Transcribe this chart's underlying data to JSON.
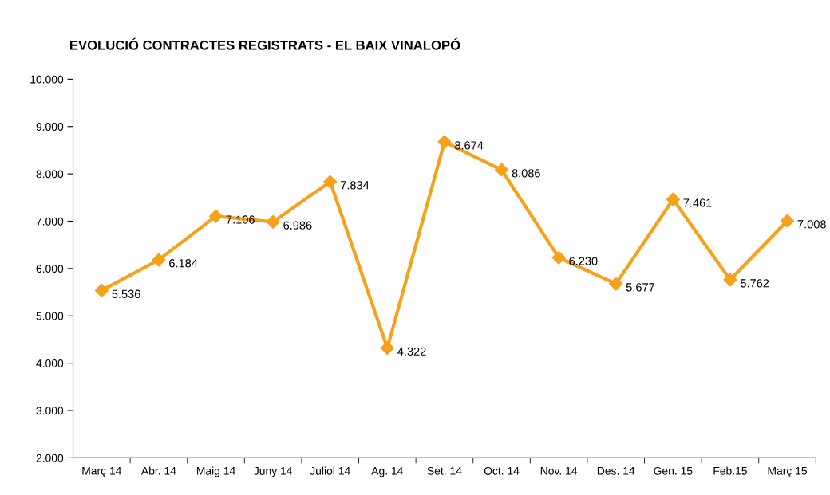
{
  "chart_data": {
    "type": "line",
    "title": "EVOLUCIÓ CONTRACTES REGISTRATS - EL BAIX VINALOPÓ",
    "categories": [
      "Març 14",
      "Abr. 14",
      "Maig 14",
      "Juny 14",
      "Juliol 14",
      "Ag. 14",
      "Set. 14",
      "Oct. 14",
      "Nov. 14",
      "Des. 14",
      "Gen. 15",
      "Feb.15",
      "Març 15"
    ],
    "series": [
      {
        "color": "#f7a11a",
        "values": [
          5536,
          6184,
          7106,
          6986,
          7834,
          4322,
          8674,
          8086,
          6230,
          5677,
          7461,
          5762,
          7008
        ],
        "value_labels": [
          "5.536",
          "6.184",
          "7.106",
          "6.986",
          "7.834",
          "4.322",
          "8.674",
          "8.086",
          "6.230",
          "5.677",
          "7.461",
          "5.762",
          "7.008"
        ]
      }
    ],
    "ylim": [
      2000,
      10000
    ],
    "yticks": [
      {
        "value": 2000,
        "label": "2.000"
      },
      {
        "value": 3000,
        "label": "3.000"
      },
      {
        "value": 4000,
        "label": "4.000"
      },
      {
        "value": 5000,
        "label": "5.000"
      },
      {
        "value": 6000,
        "label": "6.000"
      },
      {
        "value": 7000,
        "label": "7.000"
      },
      {
        "value": 8000,
        "label": "8.000"
      },
      {
        "value": 9000,
        "label": "9.000"
      },
      {
        "value": 10000,
        "label": "10.000"
      }
    ],
    "marker": "diamond",
    "line_style": "solid",
    "grid": false,
    "legend": false
  }
}
